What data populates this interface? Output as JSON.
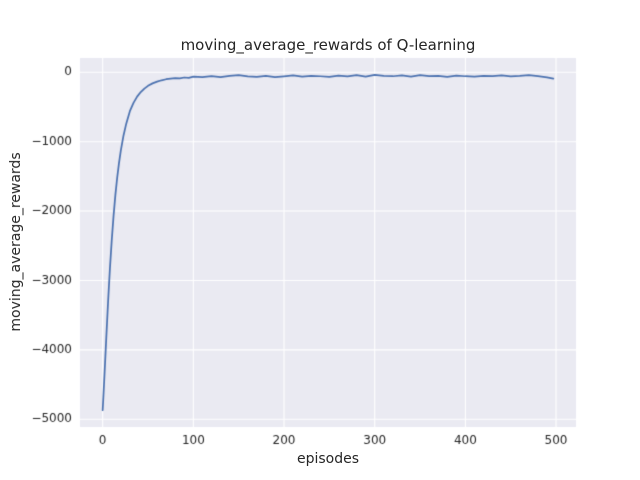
{
  "chart_data": {
    "type": "line",
    "title": "moving_average_rewards of Q-learning",
    "xlabel": "episodes",
    "ylabel": "moving_average_rewards",
    "xlim": [
      -25,
      522
    ],
    "ylim": [
      -5112,
      206
    ],
    "xticks": [
      0,
      100,
      200,
      300,
      400,
      500
    ],
    "xtick_labels": [
      "0",
      "100",
      "200",
      "300",
      "400",
      "500"
    ],
    "yticks": [
      0,
      -1000,
      -2000,
      -3000,
      -4000,
      -5000
    ],
    "ytick_labels": [
      "0",
      "−1000",
      "−2000",
      "−3000",
      "−4000",
      "−5000"
    ],
    "grid": true,
    "legend": "none",
    "style": {
      "plot_background": "#eaeaf2",
      "grid_color": "#ffffff",
      "line_color": "#4c72b0",
      "tick_text_color": "#262626"
    },
    "series": [
      {
        "name": "moving_average_rewards",
        "x": [
          0,
          1,
          2,
          3,
          4,
          5,
          6,
          7,
          8,
          10,
          12,
          14,
          16,
          18,
          20,
          23,
          26,
          30,
          34,
          38,
          42,
          46,
          50,
          55,
          60,
          65,
          70,
          75,
          80,
          85,
          90,
          95,
          100,
          110,
          120,
          130,
          140,
          150,
          160,
          170,
          180,
          190,
          200,
          210,
          220,
          230,
          240,
          250,
          260,
          270,
          280,
          290,
          300,
          310,
          320,
          330,
          340,
          350,
          360,
          370,
          380,
          390,
          400,
          410,
          420,
          430,
          440,
          450,
          460,
          470,
          480,
          490,
          497
        ],
        "y": [
          -4870,
          -4620,
          -4360,
          -4090,
          -3820,
          -3560,
          -3300,
          -3060,
          -2830,
          -2420,
          -2070,
          -1770,
          -1520,
          -1310,
          -1130,
          -910,
          -740,
          -560,
          -440,
          -350,
          -285,
          -235,
          -195,
          -160,
          -135,
          -115,
          -100,
          -92,
          -85,
          -88,
          -75,
          -80,
          -62,
          -70,
          -55,
          -68,
          -50,
          -42,
          -60,
          -65,
          -52,
          -70,
          -58,
          -45,
          -62,
          -50,
          -57,
          -66,
          -47,
          -58,
          -40,
          -63,
          -36,
          -52,
          -57,
          -46,
          -62,
          -42,
          -56,
          -50,
          -66,
          -47,
          -57,
          -62,
          -50,
          -56,
          -46,
          -60,
          -52,
          -40,
          -56,
          -72,
          -90
        ]
      }
    ]
  }
}
